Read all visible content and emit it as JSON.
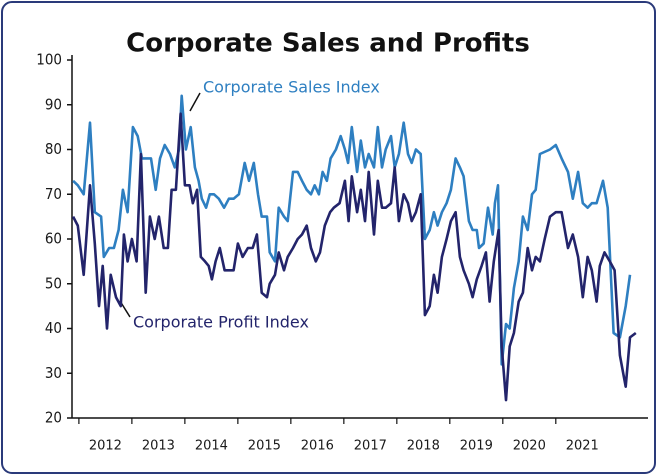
{
  "chart_data": {
    "type": "line",
    "title": "Corporate Sales and Profits",
    "xlim": [
      2011.87,
      2022.74
    ],
    "xticks": [
      2012,
      2013,
      2014,
      2015,
      2016,
      2017,
      2018,
      2019,
      2020,
      2021
    ],
    "ylim": [
      20,
      100
    ],
    "yticks": [
      20,
      30,
      40,
      50,
      60,
      70,
      80,
      90,
      100
    ],
    "grid": false,
    "series": [
      {
        "name": "Corporate Sales Index",
        "color": "#2e7fc1",
        "x": [
          2011.89,
          2011.98,
          2012.09,
          2012.21,
          2012.3,
          2012.42,
          2012.47,
          2012.57,
          2012.66,
          2012.75,
          2012.83,
          2012.92,
          2013.02,
          2013.11,
          2013.19,
          2013.28,
          2013.36,
          2013.45,
          2013.53,
          2013.62,
          2013.72,
          2013.81,
          2013.89,
          2013.94,
          2014.02,
          2014.11,
          2014.19,
          2014.26,
          2014.32,
          2014.4,
          2014.47,
          2014.55,
          2014.64,
          2014.74,
          2014.83,
          2014.92,
          2015.02,
          2015.13,
          2015.21,
          2015.3,
          2015.38,
          2015.45,
          2015.55,
          2015.6,
          2015.7,
          2015.77,
          2015.87,
          2015.94,
          2016.04,
          2016.13,
          2016.21,
          2016.3,
          2016.38,
          2016.45,
          2016.53,
          2016.6,
          2016.68,
          2016.75,
          2016.85,
          2016.94,
          2017.02,
          2017.08,
          2017.15,
          2017.25,
          2017.32,
          2017.4,
          2017.47,
          2017.57,
          2017.64,
          2017.72,
          2017.79,
          2017.89,
          2017.96,
          2018.04,
          2018.13,
          2018.21,
          2018.28,
          2018.36,
          2018.45,
          2018.53,
          2018.62,
          2018.7,
          2018.77,
          2018.85,
          2018.94,
          2019.02,
          2019.11,
          2019.19,
          2019.26,
          2019.36,
          2019.43,
          2019.51,
          2019.55,
          2019.64,
          2019.72,
          2019.81,
          2019.85,
          2019.91,
          2019.98,
          2020.06,
          2020.13,
          2020.21,
          2020.3,
          2020.38,
          2020.47,
          2020.55,
          2020.62,
          2020.7,
          2020.89,
          2021.0,
          2021.11,
          2021.23,
          2021.32,
          2021.42,
          2021.51,
          2021.6,
          2021.68,
          2021.77,
          2021.89,
          2021.98,
          2022.09,
          2022.21,
          2022.32,
          2022.4
        ],
        "values": [
          73,
          72,
          70,
          86,
          66,
          65,
          56,
          58,
          58,
          62,
          71,
          66,
          85,
          83,
          78,
          78,
          78,
          71,
          78,
          81,
          79,
          76,
          80,
          92,
          80,
          85,
          76,
          73,
          69,
          67,
          70,
          70,
          69,
          67,
          69,
          69,
          70,
          77,
          73,
          77,
          70,
          65,
          65,
          57,
          55,
          67,
          65,
          64,
          75,
          75,
          73,
          71,
          70,
          72,
          70,
          75,
          73,
          78,
          80,
          83,
          80,
          77,
          85,
          75,
          82,
          76,
          79,
          76,
          85,
          76,
          80,
          83,
          76,
          79,
          86,
          79,
          77,
          80,
          79,
          60,
          62,
          66,
          63,
          66,
          68,
          71,
          78,
          76,
          74,
          64,
          62,
          62,
          58,
          59,
          67,
          61,
          68,
          72,
          32,
          41,
          40,
          49,
          55,
          65,
          62,
          70,
          71,
          79,
          80,
          81,
          78,
          75,
          69,
          75,
          68,
          67,
          68,
          68,
          73,
          67,
          39,
          38,
          45,
          52
        ]
      },
      {
        "name": "Corporate Profit Index",
        "color": "#23246b",
        "x": [
          2011.89,
          2011.98,
          2012.09,
          2012.21,
          2012.3,
          2012.38,
          2012.45,
          2012.53,
          2012.6,
          2012.7,
          2012.79,
          2012.85,
          2012.92,
          2013.0,
          2013.09,
          2013.17,
          2013.26,
          2013.34,
          2013.43,
          2013.51,
          2013.6,
          2013.68,
          2013.75,
          2013.83,
          2013.92,
          2014.0,
          2014.09,
          2014.15,
          2014.23,
          2014.3,
          2014.38,
          2014.45,
          2014.51,
          2014.58,
          2014.66,
          2014.75,
          2014.85,
          2014.92,
          2015.0,
          2015.09,
          2015.19,
          2015.28,
          2015.36,
          2015.45,
          2015.55,
          2015.6,
          2015.7,
          2015.77,
          2015.87,
          2015.94,
          2016.04,
          2016.13,
          2016.21,
          2016.3,
          2016.38,
          2016.47,
          2016.55,
          2016.64,
          2016.74,
          2016.81,
          2016.92,
          2017.02,
          2017.09,
          2017.15,
          2017.25,
          2017.32,
          2017.4,
          2017.47,
          2017.57,
          2017.64,
          2017.72,
          2017.79,
          2017.89,
          2017.96,
          2018.04,
          2018.13,
          2018.21,
          2018.28,
          2018.36,
          2018.45,
          2018.53,
          2018.62,
          2018.7,
          2018.77,
          2018.85,
          2018.94,
          2019.02,
          2019.11,
          2019.19,
          2019.26,
          2019.36,
          2019.43,
          2019.51,
          2019.6,
          2019.68,
          2019.75,
          2019.83,
          2019.92,
          2019.98,
          2020.06,
          2020.13,
          2020.21,
          2020.3,
          2020.38,
          2020.47,
          2020.55,
          2020.62,
          2020.7,
          2020.79,
          2020.89,
          2021.0,
          2021.11,
          2021.23,
          2021.32,
          2021.42,
          2021.51,
          2021.6,
          2021.68,
          2021.77,
          2021.83,
          2021.92,
          2022.02,
          2022.11,
          2022.21,
          2022.32,
          2022.4,
          2022.51
        ],
        "values": [
          65,
          63,
          52,
          72,
          59,
          45,
          54,
          40,
          52,
          47,
          45,
          61,
          55,
          60,
          55,
          79,
          48,
          65,
          60,
          65,
          58,
          58,
          71,
          71,
          88,
          72,
          72,
          68,
          71,
          56,
          55,
          54,
          51,
          55,
          58,
          53,
          53,
          53,
          59,
          56,
          58,
          58,
          61,
          48,
          47,
          50,
          52,
          57,
          53,
          56,
          58,
          60,
          61,
          63,
          58,
          55,
          57,
          63,
          66,
          67,
          68,
          73,
          64,
          74,
          66,
          71,
          64,
          75,
          61,
          73,
          67,
          67,
          68,
          76,
          64,
          70,
          68,
          64,
          66,
          70,
          43,
          45,
          52,
          48,
          56,
          60,
          64,
          66,
          56,
          53,
          50,
          47,
          51,
          54,
          57,
          46,
          55,
          62,
          36,
          24,
          36,
          39,
          46,
          48,
          58,
          53,
          56,
          55,
          60,
          65,
          66,
          66,
          58,
          61,
          56,
          47,
          56,
          53,
          46,
          54,
          57,
          55,
          53,
          34,
          27,
          38,
          39
        ]
      }
    ]
  }
}
